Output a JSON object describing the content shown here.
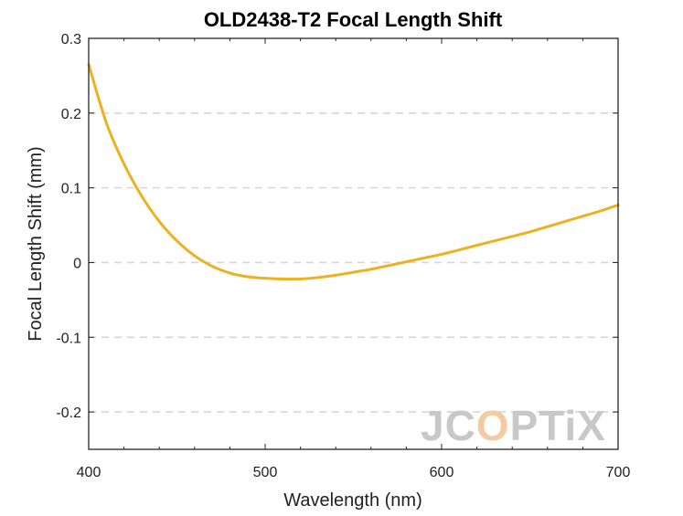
{
  "chart_data": {
    "type": "line",
    "title": "OLD2438-T2 Focal Length Shift",
    "xlabel": "Wavelength (nm)",
    "ylabel": "Focal Length Shift (mm)",
    "xlim": [
      400,
      700
    ],
    "ylim": [
      -0.25,
      0.3
    ],
    "xticks": [
      400,
      500,
      600,
      700
    ],
    "xtick_labels": [
      "400",
      "500",
      "600",
      "700"
    ],
    "yticks": [
      -0.2,
      -0.1,
      0,
      0.1,
      0.2,
      0.3
    ],
    "ytick_labels": [
      "-0.2",
      "-0.1",
      "0",
      "0.1",
      "0.2",
      "0.3"
    ],
    "grid": "horizontal dashed",
    "legend": "none",
    "series": [
      {
        "color": "#EDB120",
        "x": [
          400,
          410,
          420,
          430,
          440,
          450,
          460,
          470,
          480,
          490,
          500,
          510,
          520,
          530,
          540,
          550,
          560,
          570,
          580,
          590,
          600,
          610,
          620,
          630,
          640,
          650,
          660,
          670,
          680,
          690,
          700
        ],
        "y": [
          0.265,
          0.187,
          0.132,
          0.089,
          0.055,
          0.029,
          0.009,
          -0.005,
          -0.014,
          -0.019,
          -0.021,
          -0.022,
          -0.022,
          -0.02,
          -0.017,
          -0.013,
          -0.009,
          -0.004,
          0.001,
          0.006,
          0.011,
          0.017,
          0.023,
          0.029,
          0.035,
          0.041,
          0.048,
          0.055,
          0.062,
          0.069,
          0.077
        ]
      }
    ]
  },
  "watermark": {
    "text_a": "JC",
    "text_b": "O",
    "text_c": "PTiX",
    "color": "#c8c8c8",
    "accent": "#f4caa0"
  }
}
